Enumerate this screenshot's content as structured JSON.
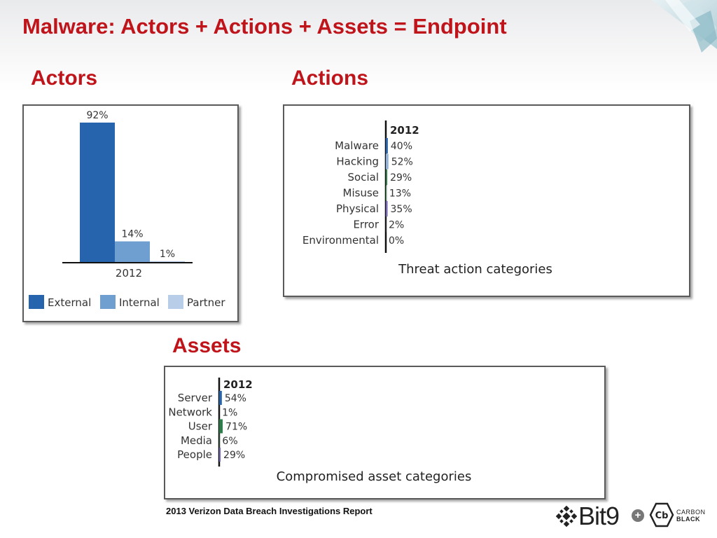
{
  "slide": {
    "title": "Malware: Actors + Actions + Assets = Endpoint",
    "sections": {
      "actors": "Actors",
      "actions": "Actions",
      "assets": "Assets"
    },
    "footer_source": "2013 Verizon Data Breach Investigations Report",
    "logos": {
      "bit9": "Bit9",
      "cb_badge": "Cb",
      "carbon": "CARBON",
      "black": "BLACK",
      "plus": "+"
    }
  },
  "colors": {
    "title_red": "#c0141b",
    "external": "#2664ad",
    "internal": "#6f9fd0",
    "partner": "#b7cde8",
    "malware": "#2664ad",
    "hacking": "#8eb2d8",
    "social": "#2e7d4a",
    "misuse": "#5aac6c",
    "physical": "#7766b4",
    "error": "#c9c3e6"
  },
  "chart_data": [
    {
      "type": "bar",
      "id": "actors",
      "categories": [
        "External",
        "Internal",
        "Partner"
      ],
      "values": [
        92,
        14,
        1
      ],
      "value_labels": [
        "92%",
        "14%",
        "1%"
      ],
      "xlabel": "2012",
      "legend": [
        "External",
        "Internal",
        "Partner"
      ],
      "legend_position": "bottom",
      "ylim": [
        0,
        100
      ]
    },
    {
      "type": "bar",
      "orientation": "horizontal",
      "id": "actions",
      "title": "Threat action categories",
      "year_label": "2012",
      "categories": [
        "Malware",
        "Hacking",
        "Social",
        "Misuse",
        "Physical",
        "Error",
        "Environmental"
      ],
      "values": [
        40,
        52,
        29,
        13,
        35,
        2,
        0
      ],
      "value_labels": [
        "40%",
        "52%",
        "29%",
        "13%",
        "35%",
        "2%",
        "0%"
      ],
      "xlim": [
        0,
        100
      ]
    },
    {
      "type": "bar",
      "orientation": "horizontal",
      "id": "assets",
      "title": "Compromised asset categories",
      "year_label": "2012",
      "categories": [
        "Server",
        "Network",
        "User",
        "Media",
        "People"
      ],
      "values": [
        54,
        1,
        71,
        6,
        29
      ],
      "value_labels": [
        "54%",
        "1%",
        "71%",
        "6%",
        "29%"
      ],
      "xlim": [
        0,
        100
      ]
    }
  ]
}
